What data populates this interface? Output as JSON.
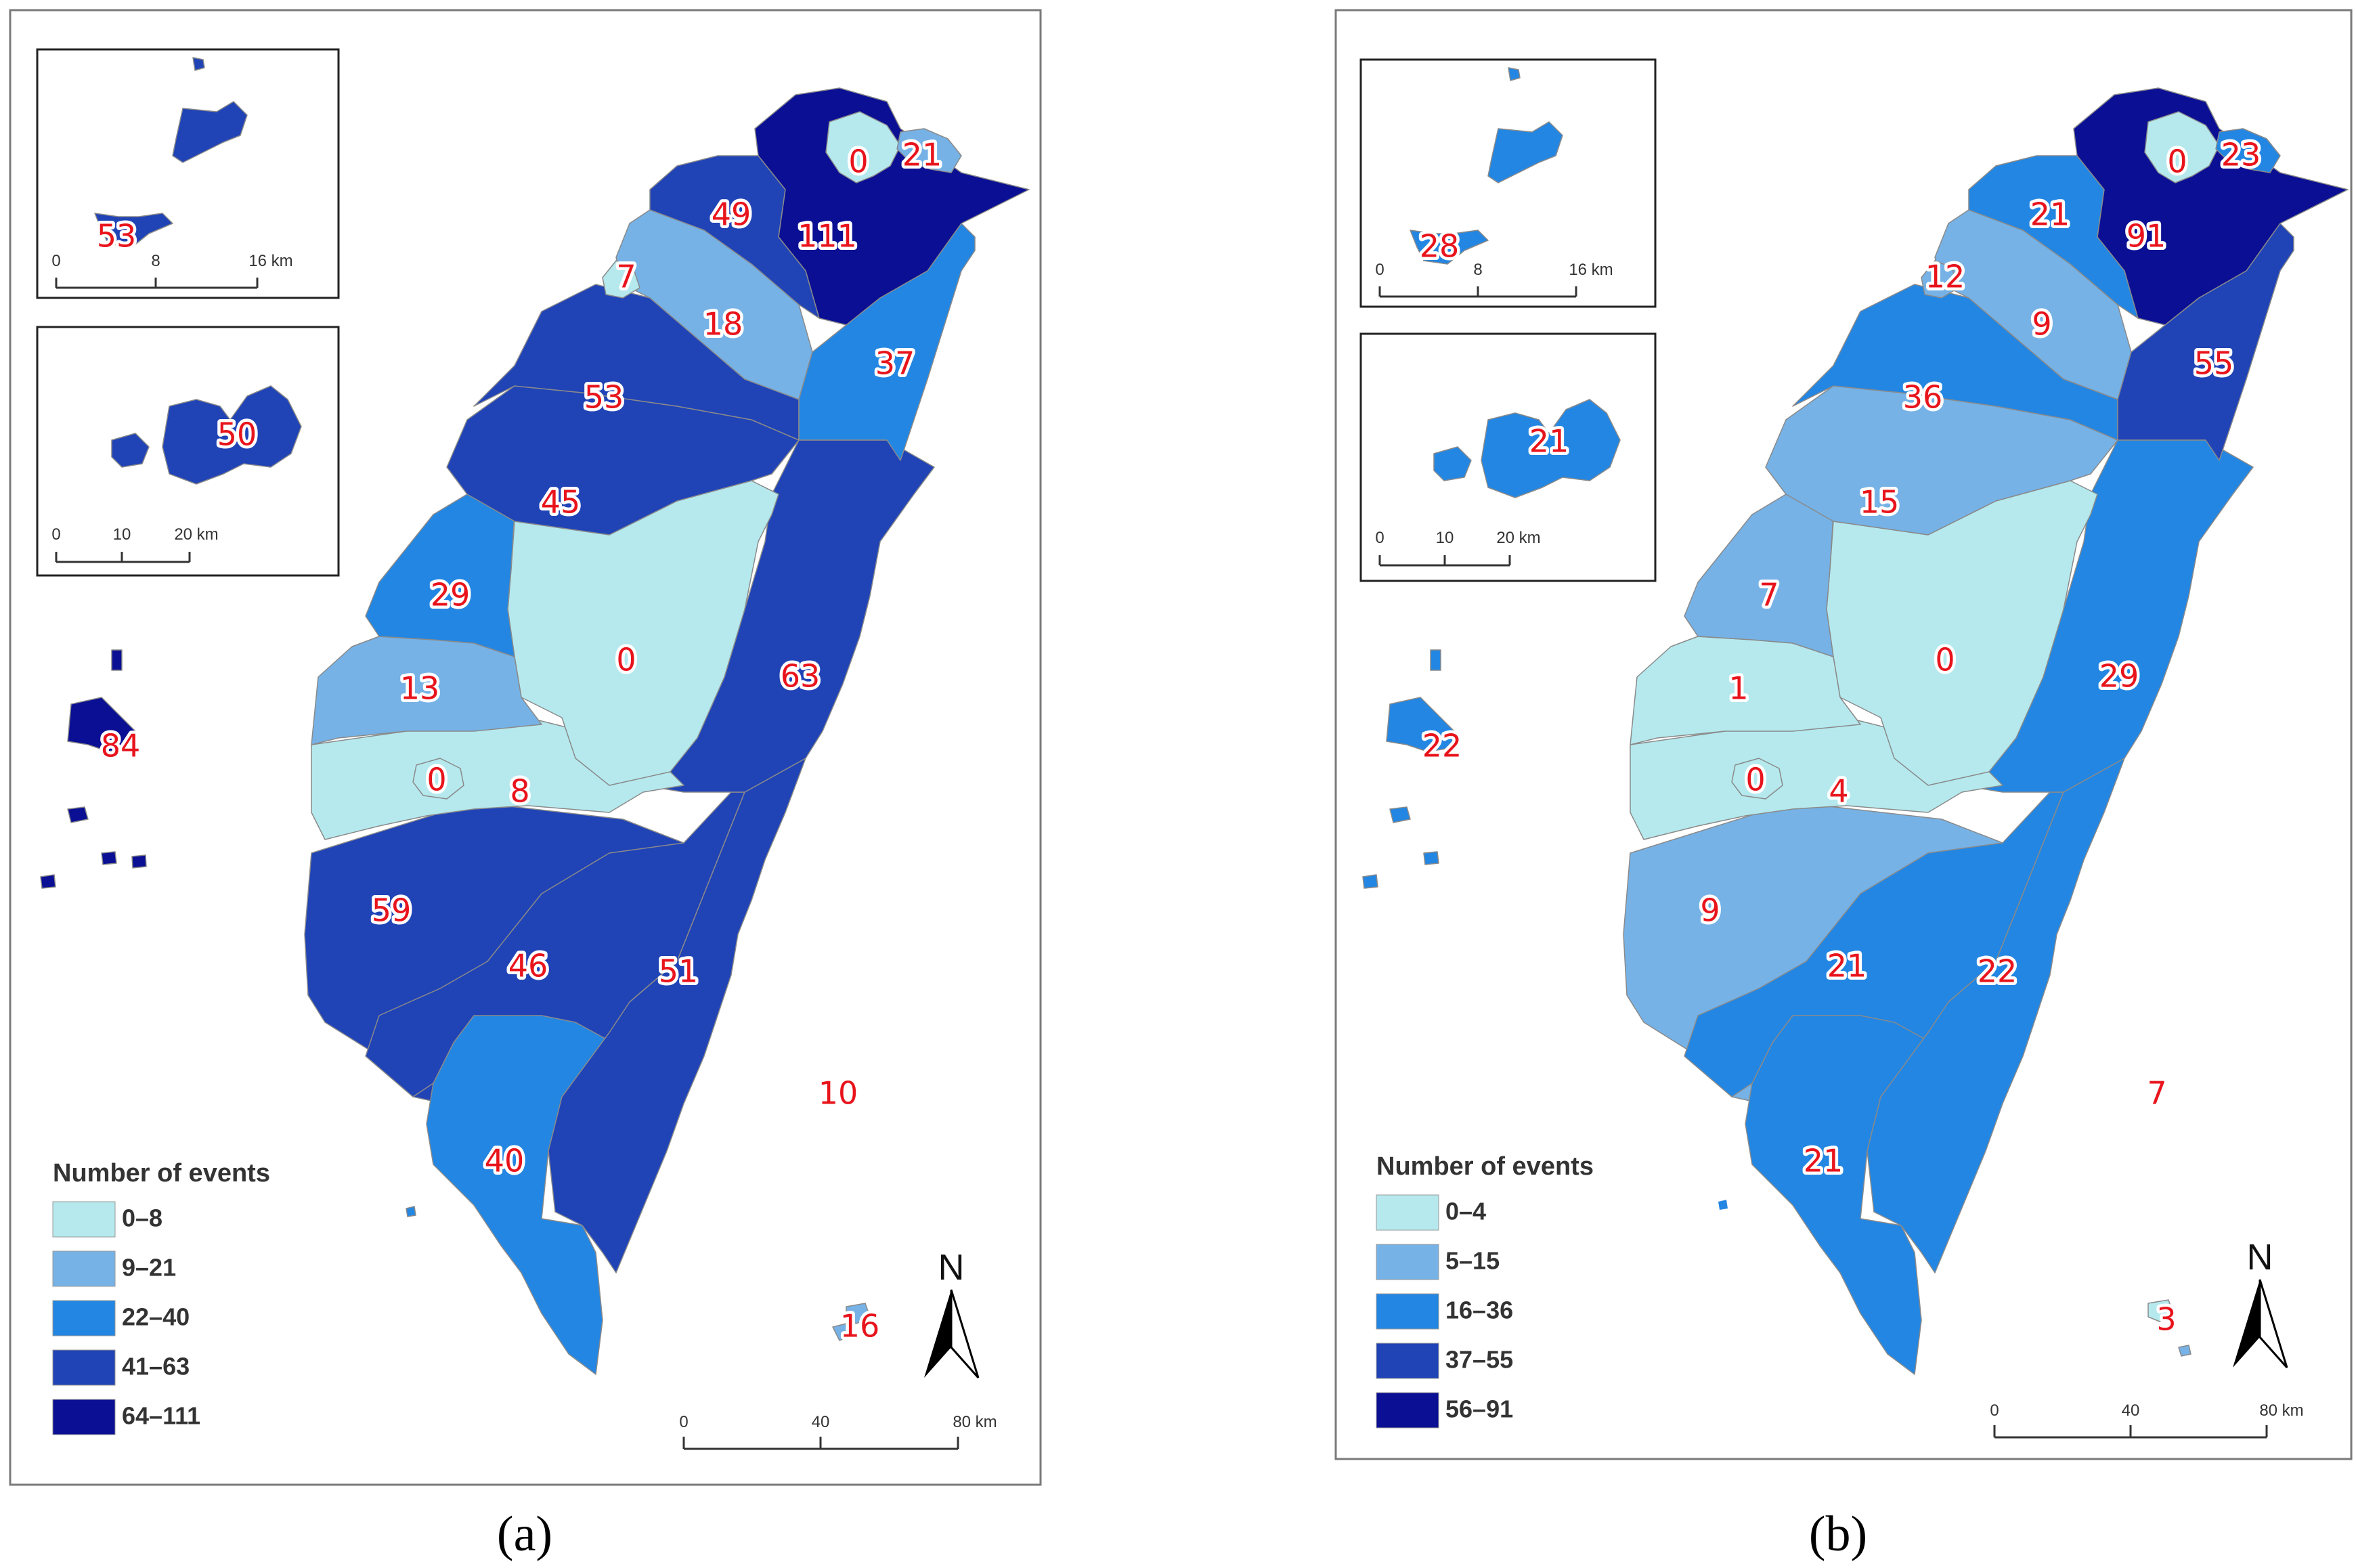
{
  "map_a": {
    "legend_title": "Number of events",
    "legend": [
      {
        "label": "0–8",
        "color": "#b5e9ee"
      },
      {
        "label": "9–21",
        "color": "#76b2e6"
      },
      {
        "label": "22–40",
        "color": "#2386e2"
      },
      {
        "label": "41–63",
        "color": "#2043b6"
      },
      {
        "label": "64–111",
        "color": "#0a0f93"
      }
    ],
    "regions": {
      "keelung": "21",
      "taipei": "0",
      "new_taipei": "111",
      "taoyuan": "49",
      "hsinchu_city": "7",
      "hsinchu_county": "18",
      "yilan": "37",
      "miaoli": "53",
      "taichung": "45",
      "changhua": "29",
      "nantou": "0",
      "hualien": "63",
      "yunlin": "13",
      "chiayi_city": "0",
      "chiayi_county": "8",
      "tainan": "59",
      "kaohsiung": "46",
      "taitung": "51",
      "pingtung": "40",
      "penghu": "84",
      "kinmen": "53",
      "matsu": "50",
      "green_island": "10",
      "orchid_island": "16"
    },
    "inset_kinmen_scale": {
      "ticks": [
        "0",
        "8",
        "16 km"
      ]
    },
    "inset_matsu_scale": {
      "ticks": [
        "0",
        "10",
        "20 km"
      ]
    },
    "main_scale": {
      "ticks": [
        "0",
        "40",
        "80 km"
      ]
    },
    "north": "N",
    "panel_label": "(a)"
  },
  "map_b": {
    "legend_title": "Number of events",
    "legend": [
      {
        "label": "0–4",
        "color": "#b5e9ee"
      },
      {
        "label": "5–15",
        "color": "#76b2e6"
      },
      {
        "label": "16–36",
        "color": "#2386e2"
      },
      {
        "label": "37–55",
        "color": "#2043b6"
      },
      {
        "label": "56–91",
        "color": "#0a0f93"
      }
    ],
    "regions": {
      "keelung": "23",
      "taipei": "0",
      "new_taipei": "91",
      "taoyuan": "21",
      "hsinchu_city": "12",
      "hsinchu_county": "9",
      "yilan": "55",
      "miaoli": "36",
      "taichung": "15",
      "changhua": "7",
      "nantou": "0",
      "hualien": "29",
      "yunlin": "1",
      "chiayi_city": "0",
      "chiayi_county": "4",
      "tainan": "9",
      "kaohsiung": "21",
      "taitung": "22",
      "pingtung": "21",
      "penghu": "22",
      "kinmen": "28",
      "matsu": "21",
      "green_island": "7",
      "orchid_island": "3"
    },
    "inset_kinmen_scale": {
      "ticks": [
        "0",
        "8",
        "16 km"
      ]
    },
    "inset_matsu_scale": {
      "ticks": [
        "0",
        "10",
        "20 km"
      ]
    },
    "main_scale": {
      "ticks": [
        "0",
        "40",
        "80 km"
      ]
    },
    "north": "N",
    "panel_label": "(b)"
  }
}
